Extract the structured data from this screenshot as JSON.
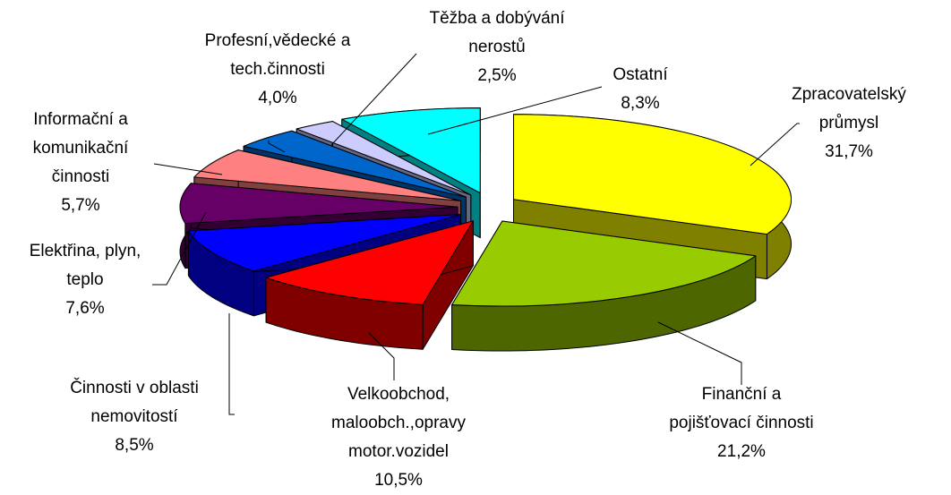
{
  "chart_data": {
    "type": "pie",
    "categories": [
      "Zpracovatelský\nprůmysl",
      "Finanční a\npojišťovací činnosti",
      "Velkoobchod,\nmaloobch.,opravy\nmotor.vozidel",
      "Činnosti v oblasti\nnemovitostí",
      "Elektřina, plyn,\nteplo",
      "Informační a\nkomunikační\nčinnosti",
      "Profesní,vědecké a\ntech.činnosti",
      "Těžba a dobývání\nnerostů",
      "Ostatní"
    ],
    "values": [
      31.7,
      21.2,
      10.5,
      8.5,
      7.6,
      5.7,
      4.0,
      2.5,
      8.3
    ],
    "value_labels": [
      "31,7%",
      "21,2%",
      "10,5%",
      "8,5%",
      "7,6%",
      "5,7%",
      "4,0%",
      "2,5%",
      "8,3%"
    ],
    "colors": [
      "#FFFF00",
      "#99CC00",
      "#FF0000",
      "#0000FF",
      "#660066",
      "#FF8080",
      "#0066CC",
      "#CCCCFF",
      "#00FFFF"
    ]
  }
}
